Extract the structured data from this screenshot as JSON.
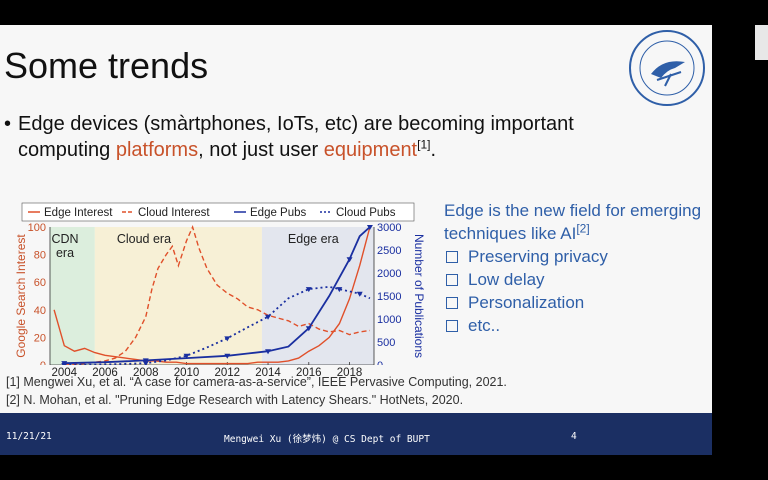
{
  "slide": {
    "title": "Some trends",
    "bullet": {
      "marker": "•",
      "text_before": "Edge devices (smàrtphones, IoTs, etc) are becoming important computing ",
      "highlight1": "platforms",
      "text_middle": ", not just user ",
      "highlight2": "equipment",
      "citation": "[1]",
      "text_end": "."
    },
    "right_box": {
      "heading": "Edge is the new field for emerging techniques like AI",
      "citation": "[2]",
      "items": [
        "Preserving privacy",
        "Low delay",
        "Personalization",
        "etc.."
      ]
    },
    "references": [
      "[1] Mengwei Xu, et al. “A case for camera-as-a-service”, IEEE Pervasive Computing, 2021.",
      "[2] N. Mohan, et al. \"Pruning Edge Research with Latency Shears.\" HotNets, 2020."
    ],
    "footer": {
      "date": "11/21/21",
      "author": "Mengwei Xu (徐梦炜) @ CS Dept of BUPT",
      "page": "4"
    }
  },
  "colors": {
    "accent_red": "#c8522a",
    "accent_blue": "#2f5fa8",
    "footer_bg": "#1b2f63",
    "edge_red": "#e0502a",
    "pubs_blue": "#1a2fa0"
  },
  "chart_data": {
    "type": "line",
    "legend": [
      "Edge Interest",
      "Cloud Interest",
      "Edge Pubs",
      "Cloud Pubs"
    ],
    "ylabel_left": "Google Search Interest",
    "ylabel_right": "Number of Publications",
    "x_ticks": [
      "2004",
      "2006",
      "2008",
      "2010",
      "2012",
      "2014",
      "2016",
      "2018"
    ],
    "y_left_ticks": [
      "0",
      "20",
      "40",
      "60",
      "80",
      "100"
    ],
    "y_right_ticks": [
      "0",
      "500",
      "1000",
      "1500",
      "2000",
      "2500",
      "3000"
    ],
    "xlim": [
      2003.3,
      2019.2
    ],
    "ylim_left": [
      0,
      100
    ],
    "ylim_right": [
      0,
      3000
    ],
    "eras": [
      {
        "label": "CDN era",
        "label_lines": [
          "CDN",
          "era"
        ],
        "from": 2003.3,
        "to": 2005.5,
        "color": "#dceedd"
      },
      {
        "label": "Cloud era",
        "label_lines": [
          "Cloud era"
        ],
        "from": 2005.5,
        "to": 2013.7,
        "color": "#f7f0d6"
      },
      {
        "label": "Edge era",
        "label_lines": [
          "Edge era"
        ],
        "from": 2013.7,
        "to": 2019.2,
        "color": "#e3e6ee"
      }
    ],
    "series": [
      {
        "name": "Edge Interest",
        "axis": "left",
        "style": "solid",
        "color": "#e0502a",
        "x": [
          2003.5,
          2004,
          2004.5,
          2005,
          2005.5,
          2006,
          2006.5,
          2007,
          2007.5,
          2008,
          2008.5,
          2009,
          2009.5,
          2010,
          2010.5,
          2011,
          2011.5,
          2012,
          2012.5,
          2013,
          2013.5,
          2014,
          2014.5,
          2015,
          2015.5,
          2016,
          2016.5,
          2017,
          2017.5,
          2018,
          2018.5,
          2019
        ],
        "y": [
          40,
          14,
          10,
          12,
          9,
          7,
          6,
          5,
          4,
          3,
          3,
          2,
          2,
          1,
          1,
          1,
          1,
          1,
          1,
          1,
          2,
          2,
          2,
          3,
          5,
          10,
          14,
          20,
          30,
          48,
          72,
          100
        ]
      },
      {
        "name": "Cloud Interest",
        "axis": "left",
        "style": "dashed",
        "color": "#e0502a",
        "x": [
          2004,
          2005,
          2006,
          2006.5,
          2007,
          2007.5,
          2008,
          2008.3,
          2008.6,
          2009,
          2009.3,
          2009.6,
          2010,
          2010.3,
          2010.6,
          2011,
          2011.5,
          2012,
          2012.5,
          2013,
          2013.5,
          2014,
          2014.5,
          2015,
          2015.5,
          2016,
          2016.5,
          2017,
          2017.5,
          2018,
          2018.5,
          2019
        ],
        "y": [
          0,
          1,
          3,
          5,
          10,
          20,
          35,
          55,
          70,
          80,
          86,
          72,
          90,
          100,
          85,
          70,
          58,
          52,
          48,
          42,
          40,
          36,
          34,
          32,
          28,
          30,
          26,
          24,
          25,
          22,
          24,
          25
        ]
      },
      {
        "name": "Edge Pubs",
        "axis": "right",
        "style": "solid",
        "color": "#1a2fa0",
        "x": [
          2004,
          2006,
          2008,
          2010,
          2012,
          2013,
          2014,
          2015,
          2016,
          2017,
          2018,
          2018.5,
          2019
        ],
        "y": [
          40,
          60,
          100,
          150,
          200,
          250,
          300,
          400,
          800,
          1500,
          2300,
          2800,
          3000
        ]
      },
      {
        "name": "Cloud Pubs",
        "axis": "right",
        "style": "dotted",
        "color": "#1a2fa0",
        "x": [
          2004,
          2006,
          2008,
          2009,
          2010,
          2011,
          2012,
          2013,
          2014,
          2015,
          2016,
          2017,
          2017.5,
          2018,
          2018.5,
          2019
        ],
        "y": [
          0,
          10,
          40,
          100,
          200,
          380,
          580,
          820,
          1050,
          1450,
          1650,
          1700,
          1650,
          1600,
          1550,
          1450
        ]
      }
    ]
  }
}
